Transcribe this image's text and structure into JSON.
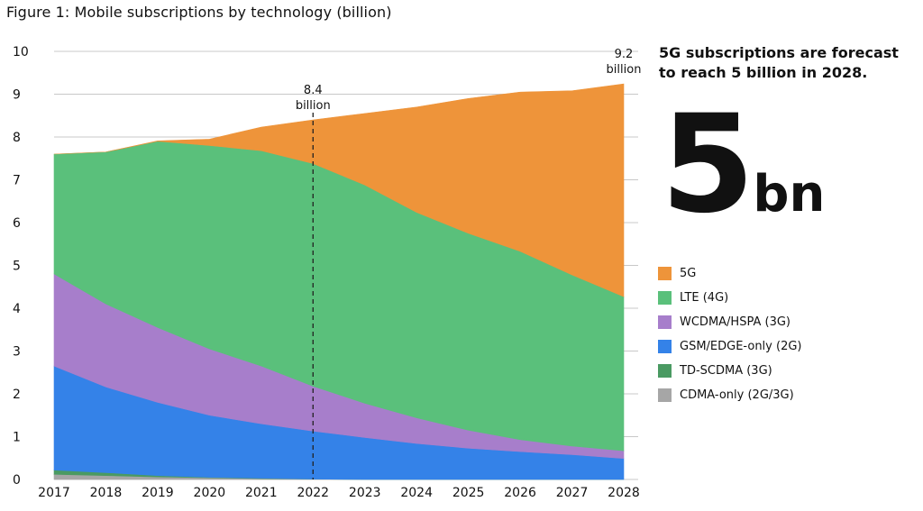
{
  "title": "Figure 1: Mobile subscriptions by technology (billion)",
  "headline": "5G subscriptions are forecast to reach 5 billion in 2028.",
  "big_number": {
    "value": "5",
    "unit": "bn"
  },
  "chart_data": {
    "type": "area",
    "stacked": true,
    "x": [
      2017,
      2018,
      2019,
      2020,
      2021,
      2022,
      2023,
      2024,
      2025,
      2026,
      2027,
      2028
    ],
    "ylim": [
      0,
      10
    ],
    "yticks": [
      0,
      1,
      2,
      3,
      4,
      5,
      6,
      7,
      8,
      9,
      10
    ],
    "grid": true,
    "legend_position": "right",
    "series": [
      {
        "name": "CDMA-only (2G/3G)",
        "color": "#a6a6a6",
        "values": [
          0.12,
          0.09,
          0.06,
          0.04,
          0.02,
          0.01,
          0.0,
          0.0,
          0.0,
          0.0,
          0.0,
          0.0
        ]
      },
      {
        "name": "TD-SCDMA (3G)",
        "color": "#4a9a62",
        "values": [
          0.1,
          0.07,
          0.03,
          0.01,
          0.01,
          0.0,
          0.0,
          0.0,
          0.0,
          0.0,
          0.0,
          0.0
        ]
      },
      {
        "name": "GSM/EDGE-only (2G)",
        "color": "#3482e8",
        "values": [
          2.43,
          2.0,
          1.71,
          1.45,
          1.27,
          1.12,
          0.98,
          0.84,
          0.73,
          0.65,
          0.58,
          0.49
        ]
      },
      {
        "name": "WCDMA/HSPA (3G)",
        "color": "#a77ecb",
        "values": [
          2.15,
          1.94,
          1.75,
          1.55,
          1.35,
          1.05,
          0.8,
          0.6,
          0.42,
          0.28,
          0.2,
          0.18
        ]
      },
      {
        "name": "LTE (4G)",
        "color": "#5ac07b",
        "values": [
          2.8,
          3.55,
          4.35,
          4.75,
          5.03,
          5.2,
          5.1,
          4.8,
          4.6,
          4.4,
          4.0,
          3.6
        ]
      },
      {
        "name": "5G",
        "color": "#ee943a",
        "values": [
          0.0,
          0.0,
          0.01,
          0.15,
          0.55,
          1.02,
          1.67,
          2.46,
          3.15,
          3.72,
          4.3,
          4.97
        ]
      }
    ],
    "annotations": [
      {
        "x": 2022,
        "lines": [
          "8.4",
          "billion"
        ],
        "dashed_line": true
      },
      {
        "x": 2028,
        "lines": [
          "9.2",
          "billion"
        ],
        "dashed_line": false
      }
    ]
  },
  "legend_order": [
    "5G",
    "LTE (4G)",
    "WCDMA/HSPA (3G)",
    "GSM/EDGE-only (2G)",
    "TD-SCDMA (3G)",
    "CDMA-only (2G/3G)"
  ]
}
